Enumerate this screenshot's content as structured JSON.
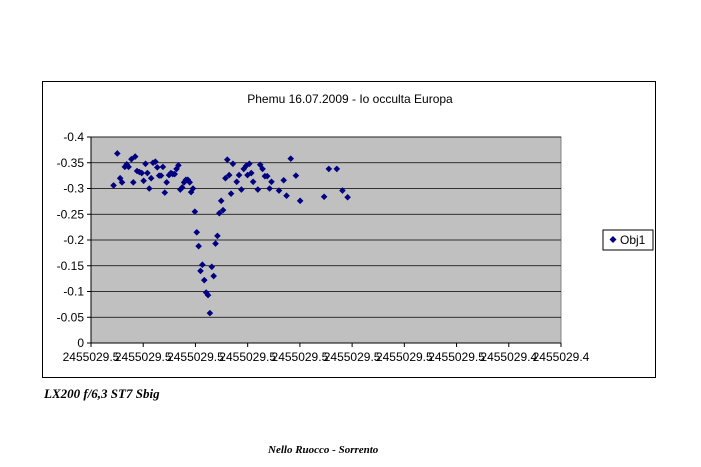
{
  "colors": {
    "plot_bg": "#c0c0c0",
    "marker": "#000080",
    "grid": "#000000"
  },
  "captions": {
    "equipment": "LX200 f/6,3  ST7 Sbig",
    "author": "Nello Ruocco - Sorrento"
  },
  "chart_data": {
    "type": "scatter",
    "title": "Phemu 16.07.2009  - Io occulta Europa",
    "xlabel": "",
    "ylabel": "",
    "x_tick_labels": [
      "2455029.5",
      "2455029.5",
      "2455029.5",
      "2455029.5",
      "2455029.5",
      "2455029.5",
      "2455029.5",
      "2455029.5",
      "2455029.4",
      "2455029.4"
    ],
    "y_ticks": [
      0,
      -0.05,
      -0.1,
      -0.15,
      -0.2,
      -0.25,
      -0.3,
      -0.35,
      -0.4
    ],
    "y_tick_labels": [
      "0",
      "-0.05",
      "-0.1",
      "-0.15",
      "-0.2",
      "-0.25",
      "-0.3",
      "-0.35",
      "-0.4"
    ],
    "ylim": [
      0,
      -0.4
    ],
    "y_reversed": true,
    "grid": true,
    "legend_position": "right",
    "series": [
      {
        "name": "Obj1",
        "marker": "diamond",
        "points": [
          [
            0.048,
            -0.306
          ],
          [
            0.056,
            -0.368
          ],
          [
            0.062,
            -0.32
          ],
          [
            0.066,
            -0.312
          ],
          [
            0.072,
            -0.342
          ],
          [
            0.076,
            -0.347
          ],
          [
            0.08,
            -0.342
          ],
          [
            0.086,
            -0.357
          ],
          [
            0.09,
            -0.312
          ],
          [
            0.094,
            -0.362
          ],
          [
            0.098,
            -0.334
          ],
          [
            0.103,
            -0.332
          ],
          [
            0.108,
            -0.33
          ],
          [
            0.112,
            -0.315
          ],
          [
            0.116,
            -0.348
          ],
          [
            0.12,
            -0.33
          ],
          [
            0.124,
            -0.3
          ],
          [
            0.128,
            -0.32
          ],
          [
            0.132,
            -0.35
          ],
          [
            0.137,
            -0.352
          ],
          [
            0.141,
            -0.341
          ],
          [
            0.145,
            -0.325
          ],
          [
            0.149,
            -0.325
          ],
          [
            0.153,
            -0.342
          ],
          [
            0.157,
            -0.292
          ],
          [
            0.161,
            -0.312
          ],
          [
            0.166,
            -0.326
          ],
          [
            0.17,
            -0.33
          ],
          [
            0.174,
            -0.328
          ],
          [
            0.178,
            -0.328
          ],
          [
            0.182,
            -0.338
          ],
          [
            0.186,
            -0.345
          ],
          [
            0.19,
            -0.298
          ],
          [
            0.194,
            -0.302
          ],
          [
            0.198,
            -0.312
          ],
          [
            0.202,
            -0.317
          ],
          [
            0.206,
            -0.317
          ],
          [
            0.21,
            -0.312
          ],
          [
            0.213,
            -0.293
          ],
          [
            0.217,
            -0.3
          ],
          [
            0.221,
            -0.255
          ],
          [
            0.225,
            -0.215
          ],
          [
            0.229,
            -0.188
          ],
          [
            0.233,
            -0.14
          ],
          [
            0.237,
            -0.152
          ],
          [
            0.241,
            -0.122
          ],
          [
            0.245,
            -0.098
          ],
          [
            0.249,
            -0.093
          ],
          [
            0.253,
            -0.058
          ],
          [
            0.257,
            -0.148
          ],
          [
            0.261,
            -0.13
          ],
          [
            0.265,
            -0.193
          ],
          [
            0.269,
            -0.208
          ],
          [
            0.273,
            -0.252
          ],
          [
            0.277,
            -0.276
          ],
          [
            0.281,
            -0.258
          ],
          [
            0.286,
            -0.32
          ],
          [
            0.29,
            -0.356
          ],
          [
            0.294,
            -0.326
          ],
          [
            0.298,
            -0.29
          ],
          [
            0.302,
            -0.348
          ],
          [
            0.31,
            -0.313
          ],
          [
            0.315,
            -0.326
          ],
          [
            0.32,
            -0.298
          ],
          [
            0.325,
            -0.338
          ],
          [
            0.33,
            -0.344
          ],
          [
            0.333,
            -0.326
          ],
          [
            0.337,
            -0.348
          ],
          [
            0.341,
            -0.33
          ],
          [
            0.345,
            -0.313
          ],
          [
            0.355,
            -0.298
          ],
          [
            0.36,
            -0.346
          ],
          [
            0.365,
            -0.338
          ],
          [
            0.37,
            -0.324
          ],
          [
            0.375,
            -0.324
          ],
          [
            0.38,
            -0.3
          ],
          [
            0.384,
            -0.313
          ],
          [
            0.4,
            -0.296
          ],
          [
            0.41,
            -0.316
          ],
          [
            0.416,
            -0.286
          ],
          [
            0.425,
            -0.358
          ],
          [
            0.436,
            -0.325
          ],
          [
            0.445,
            -0.276
          ],
          [
            0.496,
            -0.284
          ],
          [
            0.506,
            -0.338
          ],
          [
            0.523,
            -0.338
          ],
          [
            0.535,
            -0.296
          ],
          [
            0.546,
            -0.283
          ]
        ]
      }
    ]
  }
}
